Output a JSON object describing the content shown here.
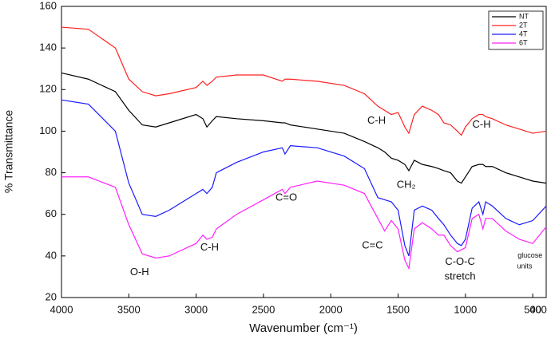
{
  "chart_data": {
    "type": "line",
    "xlabel": "Wavenumber (cm⁻¹)",
    "ylabel": "% Transmittance",
    "x": [
      4000,
      3800,
      3600,
      3500,
      3400,
      3300,
      3200,
      3000,
      2950,
      2920,
      2880,
      2850,
      2700,
      2500,
      2360,
      2340,
      2300,
      2100,
      1900,
      1750,
      1650,
      1600,
      1550,
      1500,
      1450,
      1420,
      1380,
      1320,
      1250,
      1200,
      1160,
      1110,
      1060,
      1030,
      1000,
      950,
      900,
      870,
      850,
      800,
      700,
      600,
      500,
      400
    ],
    "series": [
      {
        "name": "NT",
        "color": "#000000",
        "values": [
          128,
          125,
          119,
          110,
          103,
          102,
          104,
          108,
          106,
          102,
          105,
          107,
          106,
          105,
          104,
          104,
          103,
          101,
          99,
          95,
          92,
          90,
          87,
          86,
          84,
          81,
          86,
          84,
          83,
          82,
          81,
          80,
          76,
          75,
          78,
          83,
          84,
          84,
          83,
          83,
          80,
          78,
          76,
          75
        ]
      },
      {
        "name": "2T",
        "color": "#ff2020",
        "values": [
          150,
          149,
          140,
          125,
          119,
          117,
          118,
          121,
          124,
          122,
          124,
          126,
          127,
          127,
          124,
          125,
          125,
          124,
          122,
          118,
          112,
          110,
          108,
          109,
          102,
          99,
          108,
          112,
          110,
          108,
          104,
          103,
          100,
          98,
          102,
          106,
          108,
          108,
          107,
          106,
          103,
          101,
          99,
          100
        ]
      },
      {
        "name": "4T",
        "color": "#1a1aff",
        "values": [
          115,
          113,
          100,
          75,
          60,
          59,
          62,
          70,
          72,
          70,
          73,
          80,
          85,
          90,
          92,
          89,
          93,
          92,
          88,
          82,
          68,
          67,
          66,
          62,
          45,
          40,
          62,
          64,
          62,
          58,
          55,
          50,
          46,
          45,
          48,
          63,
          66,
          60,
          66,
          64,
          58,
          55,
          57,
          64
        ]
      },
      {
        "name": "6T",
        "color": "#ff20ff",
        "values": [
          78,
          78,
          73,
          55,
          41,
          39,
          40,
          46,
          50,
          48,
          49,
          53,
          60,
          67,
          72,
          70,
          73,
          76,
          74,
          70,
          58,
          52,
          57,
          53,
          38,
          34,
          53,
          56,
          53,
          50,
          50,
          45,
          42,
          43,
          44,
          58,
          60,
          53,
          58,
          58,
          52,
          48,
          46,
          54
        ]
      }
    ],
    "xlim": [
      4000,
      400
    ],
    "xticks": [
      4000,
      3500,
      3000,
      2500,
      2000,
      1500,
      1000,
      500,
      400
    ],
    "ylim": [
      20,
      160
    ],
    "yticks": [
      20,
      40,
      60,
      80,
      100,
      120,
      140,
      160
    ],
    "legend": "top-right",
    "annotations": [
      {
        "text": "C-H",
        "x": 1660,
        "y": 105
      },
      {
        "text": "C-H",
        "x": 880,
        "y": 103
      },
      {
        "text": "CH₂",
        "x": 1440,
        "y": 74
      },
      {
        "text": "C=O",
        "x": 2330,
        "y": 68
      },
      {
        "text": "C=C",
        "x": 1690,
        "y": 45
      },
      {
        "text": "O-H",
        "x": 3420,
        "y": 32
      },
      {
        "text": "C-H",
        "x": 2900,
        "y": 44
      },
      {
        "text": "C-O-C",
        "x": 1040,
        "y": 37
      },
      {
        "text": "stretch",
        "x": 1040,
        "y": 30
      },
      {
        "text": "glucose",
        "x": 520,
        "y": 40
      },
      {
        "text": "units",
        "x": 560,
        "y": 35
      }
    ]
  }
}
